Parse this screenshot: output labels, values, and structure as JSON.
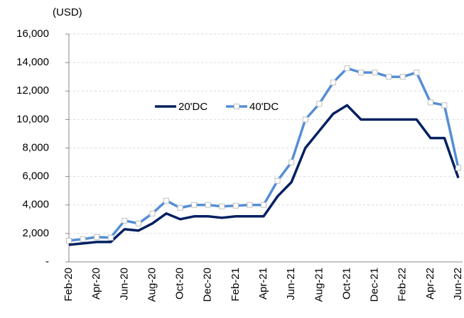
{
  "chart_data": {
    "type": "line",
    "y_label": "(USD)",
    "categories": [
      "Feb-20",
      null,
      "Apr-20",
      null,
      "Jun-20",
      null,
      "Aug-20",
      null,
      "Oct-20",
      null,
      "Dec-20",
      null,
      "Feb-21",
      null,
      "Apr-21",
      null,
      "Jun-21",
      null,
      "Aug-21",
      null,
      "Oct-21",
      null,
      "Dec-21",
      null,
      "Feb-22",
      null,
      "Apr-22",
      null,
      "Jun-22"
    ],
    "series": [
      {
        "name": "20'DC",
        "color": "#002060",
        "values": [
          1200,
          1300,
          1400,
          1400,
          2300,
          2200,
          2700,
          3400,
          3000,
          3200,
          3200,
          3100,
          3200,
          3200,
          3200,
          4600,
          5600,
          8000,
          9200,
          10400,
          11000,
          10000,
          10000,
          10000,
          10000,
          10000,
          8700,
          8700,
          5900
        ]
      },
      {
        "name": "40'DC",
        "color": "#558ed5",
        "marker": "square",
        "values": [
          1500,
          1600,
          1750,
          1700,
          2900,
          2700,
          3400,
          4300,
          3800,
          4000,
          4000,
          3900,
          3950,
          4000,
          4000,
          5700,
          7000,
          10000,
          11100,
          12600,
          13600,
          13300,
          13300,
          13000,
          13000,
          13300,
          11200,
          11000,
          6600
        ]
      }
    ],
    "ylim": [
      0,
      16000
    ],
    "yticks": [
      {
        "value": 0,
        "label": "-"
      },
      {
        "value": 2000,
        "label": "2,000"
      },
      {
        "value": 4000,
        "label": "4,000"
      },
      {
        "value": 6000,
        "label": "6,000"
      },
      {
        "value": 8000,
        "label": "8,000"
      },
      {
        "value": 10000,
        "label": "10,000"
      },
      {
        "value": 12000,
        "label": "12,000"
      },
      {
        "value": 14000,
        "label": "14,000"
      },
      {
        "value": 16000,
        "label": "16,000"
      }
    ],
    "grid": true
  }
}
